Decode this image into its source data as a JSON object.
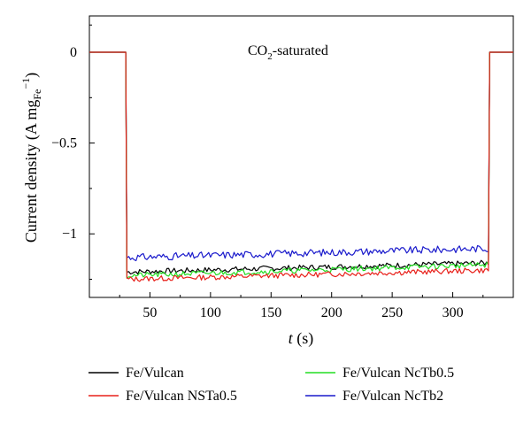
{
  "chart_data": {
    "type": "line",
    "annotation": {
      "text": "CO",
      "sub": "2",
      "rest": "-saturated"
    },
    "xlabel": {
      "italic": "t",
      "rest": " (s)"
    },
    "ylabel": {
      "main": "Current density (A mg",
      "sub": "Fe",
      "sup": "−1",
      "close": ")"
    },
    "xlim": [
      0,
      350
    ],
    "ylim": [
      -1.35,
      0.2
    ],
    "xticks": [
      50,
      100,
      150,
      200,
      250,
      300
    ],
    "xtick_labels": [
      "50",
      "100",
      "150",
      "200",
      "250",
      "300"
    ],
    "yticks": [
      0,
      -0.5,
      -1
    ],
    "ytick_labels": [
      "0",
      "−0.5",
      "−1"
    ],
    "grid": false,
    "legend_position": "bottom",
    "series": [
      {
        "name": "Fe/Vulcan",
        "color": "#000000",
        "level_start": -1.21,
        "level_end": -1.16,
        "points": [
          [
            0,
            0
          ],
          [
            30,
            0
          ],
          [
            31,
            -1.22
          ],
          [
            50,
            -1.2
          ],
          [
            100,
            -1.19
          ],
          [
            150,
            -1.18
          ],
          [
            200,
            -1.18
          ],
          [
            250,
            -1.17
          ],
          [
            300,
            -1.165
          ],
          [
            330,
            -1.16
          ],
          [
            331,
            0
          ],
          [
            350,
            0
          ]
        ]
      },
      {
        "name": "Fe/Vulcan NSTa0.5",
        "color": "#e8201a",
        "level_start": -1.25,
        "level_end": -1.2,
        "points": [
          [
            0,
            0
          ],
          [
            30,
            0
          ],
          [
            31,
            -1.26
          ],
          [
            50,
            -1.24
          ],
          [
            100,
            -1.23
          ],
          [
            150,
            -1.22
          ],
          [
            200,
            -1.21
          ],
          [
            250,
            -1.21
          ],
          [
            300,
            -1.2
          ],
          [
            330,
            -1.2
          ],
          [
            331,
            0
          ],
          [
            350,
            0
          ]
        ]
      },
      {
        "name": "Fe/Vulcan NcTb0.5",
        "color": "#22dd22",
        "level_start": -1.23,
        "level_end": -1.17,
        "points": [
          [
            0,
            0
          ],
          [
            30,
            0
          ],
          [
            31,
            -1.24
          ],
          [
            50,
            -1.21
          ],
          [
            100,
            -1.2
          ],
          [
            150,
            -1.19
          ],
          [
            200,
            -1.19
          ],
          [
            250,
            -1.18
          ],
          [
            300,
            -1.18
          ],
          [
            330,
            -1.17
          ],
          [
            331,
            0
          ],
          [
            350,
            0
          ]
        ]
      },
      {
        "name": "Fe/Vulcan NcTb2",
        "color": "#1a1acc",
        "level_start": -1.13,
        "level_end": -1.08,
        "points": [
          [
            0,
            0
          ],
          [
            30,
            0
          ],
          [
            31,
            -1.14
          ],
          [
            50,
            -1.11
          ],
          [
            100,
            -1.09
          ],
          [
            150,
            -1.08
          ],
          [
            200,
            -1.07
          ],
          [
            250,
            -1.07
          ],
          [
            300,
            -1.08
          ],
          [
            330,
            -1.08
          ],
          [
            331,
            0
          ],
          [
            350,
            0
          ]
        ]
      }
    ]
  }
}
